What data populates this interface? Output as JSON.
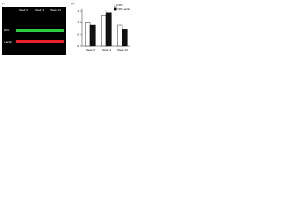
{
  "figure": {
    "panel_a": {
      "label": "(a)",
      "groups": [
        "Week 0",
        "Week 4",
        "Week 12"
      ],
      "rows": [
        "NPC",
        "β-actin"
      ]
    }
  },
  "chart_data": {
    "type": "bar",
    "label": "(b)",
    "categories": [
      "Week 0",
      "Week 4",
      "Week 12"
    ],
    "series": [
      {
        "name": "NPC",
        "color": "#ffffff",
        "values": [
          1.0,
          1.3,
          0.9
        ]
      },
      {
        "name": "NPC-actin",
        "color": "#111111",
        "values": [
          0.9,
          1.4,
          0.7
        ]
      }
    ],
    "ylim": [
      0,
      1.5
    ],
    "yticks": [
      {
        "value": 0,
        "label": "0.0"
      },
      {
        "value": 0.5,
        "label": "0.5"
      },
      {
        "value": 1,
        "label": "1.0"
      },
      {
        "value": 1.5,
        "label": "1.5"
      }
    ],
    "annotation": "*"
  }
}
